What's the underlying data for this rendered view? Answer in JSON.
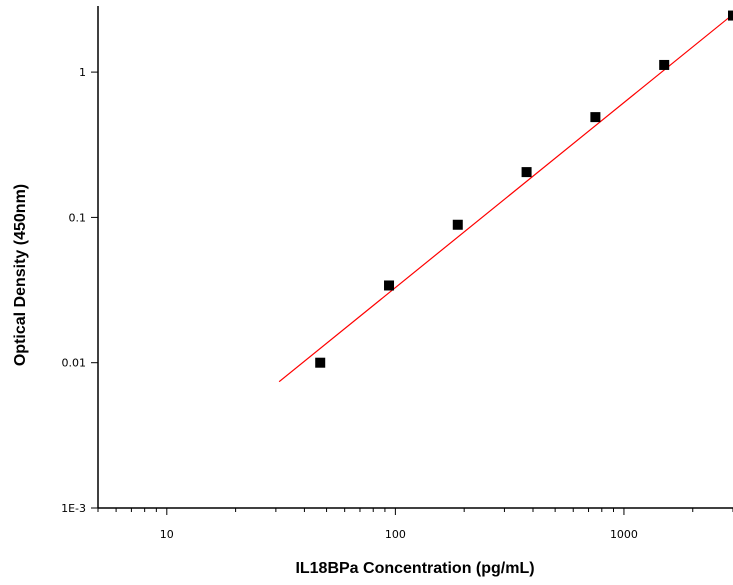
{
  "chart_data": {
    "type": "scatter",
    "xlabel": "IL18BPa Concentration (pg/mL)",
    "ylabel": "Optical Density (450nm)",
    "x_scale": "log",
    "y_scale": "log",
    "xlim": [
      5,
      3000
    ],
    "ylim": [
      0.001,
      2.7
    ],
    "x_ticks": [
      10,
      100,
      1000
    ],
    "x_tick_labels": [
      "10",
      "100",
      "1000"
    ],
    "y_ticks": [
      0.001,
      0.01,
      0.1,
      1
    ],
    "y_tick_labels": [
      "1E-3",
      "0.01",
      "0.1",
      "1"
    ],
    "grid": false,
    "series": [
      {
        "marker": "square",
        "color": "#000000",
        "points": [
          {
            "x": 46.9,
            "y": 0.01
          },
          {
            "x": 93.8,
            "y": 0.034
          },
          {
            "x": 187.5,
            "y": 0.089
          },
          {
            "x": 375,
            "y": 0.205
          },
          {
            "x": 750,
            "y": 0.49
          },
          {
            "x": 1500,
            "y": 1.12
          },
          {
            "x": 3000,
            "y": 2.45
          }
        ]
      }
    ],
    "fit_line": {
      "color": "#ff0000",
      "x_range": [
        31,
        3000
      ],
      "y_range": [
        0.0074,
        2.5
      ]
    }
  }
}
